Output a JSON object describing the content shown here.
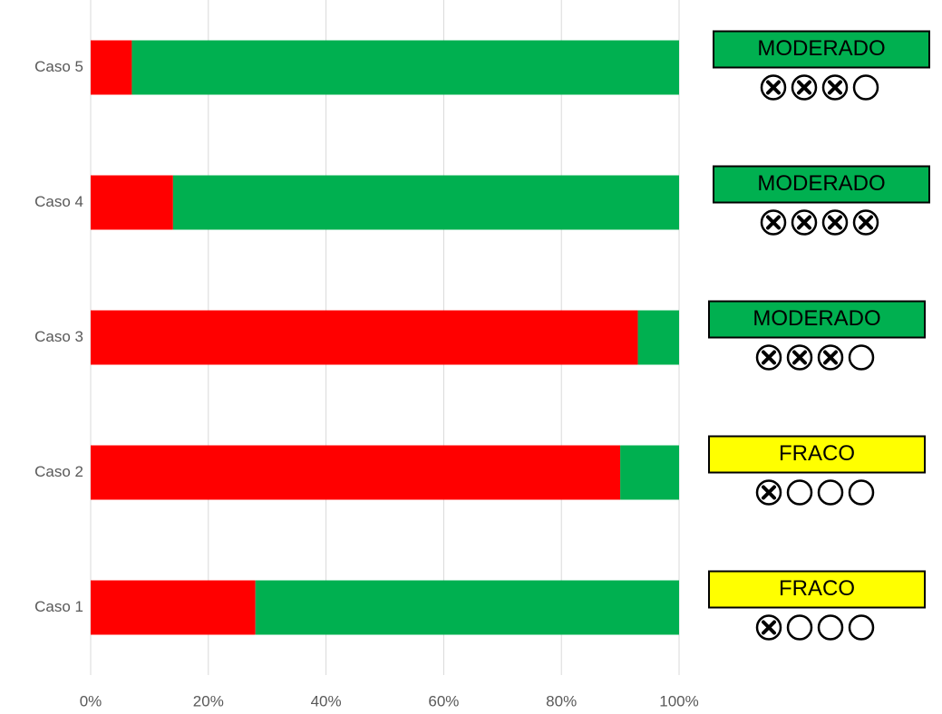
{
  "chart_data": {
    "type": "stacked_bar_horizontal",
    "categories": [
      "Caso 1",
      "Caso 2",
      "Caso 3",
      "Caso 4",
      "Caso 5"
    ],
    "series": [
      {
        "color": "#ff0000",
        "values": [
          28,
          90,
          93,
          14,
          7
        ]
      },
      {
        "color": "#00b050",
        "values": [
          72,
          10,
          7,
          86,
          93
        ]
      }
    ],
    "xlim": [
      0,
      100
    ],
    "xticks": [
      {
        "value": 0,
        "label": "0%"
      },
      {
        "value": 20,
        "label": "20%"
      },
      {
        "value": 40,
        "label": "40%"
      },
      {
        "value": 60,
        "label": "60%"
      },
      {
        "value": 80,
        "label": "80%"
      },
      {
        "value": 100,
        "label": "100%"
      }
    ],
    "grid": true,
    "ratings": [
      {
        "label": "FRACO",
        "color": "#ffff00",
        "crossed": 1,
        "total": 4
      },
      {
        "label": "FRACO",
        "color": "#ffff00",
        "crossed": 1,
        "total": 4
      },
      {
        "label": "MODERADO",
        "color": "#00b050",
        "crossed": 3,
        "total": 4
      },
      {
        "label": "MODERADO",
        "color": "#00b050",
        "crossed": 4,
        "total": 4
      },
      {
        "label": "MODERADO",
        "color": "#00b050",
        "crossed": 3,
        "total": 4
      }
    ]
  }
}
